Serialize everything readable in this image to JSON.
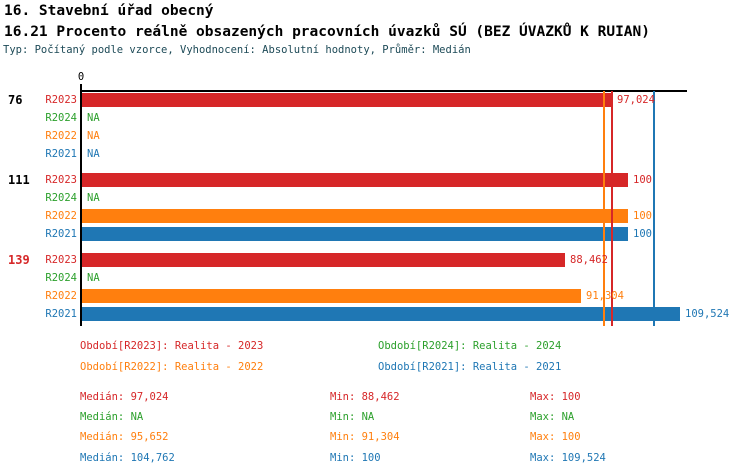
{
  "header": {
    "title": "16. Stavební úřad obecný",
    "subtitle": "16.21 Procento reálně obsazených pracovních úvazků SÚ (BEZ ÚVAZKŮ K RUIAN)",
    "meta": "Typ: Počítaný podle vzorce, Vyhodnocení: Absolutní hodnoty, Průměr: Medián"
  },
  "colors": {
    "R2023": "#d62728",
    "R2024": "#2ca02c",
    "R2022": "#ff7f0e",
    "R2021": "#1f77b4",
    "axis": "#000000",
    "meta_text": "#1d4a57",
    "group_label_default": "#000000",
    "group_label_highlight": "#d62728"
  },
  "chart_data": {
    "type": "bar",
    "orientation": "horizontal",
    "x_axis": {
      "origin_label": "0",
      "min": 0,
      "max": 110.6,
      "grid": false
    },
    "series_order": [
      "R2023",
      "R2024",
      "R2022",
      "R2021"
    ],
    "series_colors": {
      "R2023": "#d62728",
      "R2024": "#2ca02c",
      "R2022": "#ff7f0e",
      "R2021": "#1f77b4"
    },
    "na_text": "NA",
    "groups": [
      {
        "label": "76",
        "label_color": "#000000",
        "bars": [
          {
            "series": "R2023",
            "value": 97.024,
            "display": "97,024"
          },
          {
            "series": "R2024",
            "value": null,
            "display": "NA"
          },
          {
            "series": "R2022",
            "value": null,
            "display": "NA"
          },
          {
            "series": "R2021",
            "value": null,
            "display": "NA"
          }
        ]
      },
      {
        "label": "111",
        "label_color": "#000000",
        "bars": [
          {
            "series": "R2023",
            "value": 100,
            "display": "100"
          },
          {
            "series": "R2024",
            "value": null,
            "display": "NA"
          },
          {
            "series": "R2022",
            "value": 100,
            "display": "100"
          },
          {
            "series": "R2021",
            "value": 100,
            "display": "100"
          }
        ]
      },
      {
        "label": "139",
        "label_color": "#d62728",
        "bars": [
          {
            "series": "R2023",
            "value": 88.462,
            "display": "88,462"
          },
          {
            "series": "R2024",
            "value": null,
            "display": "NA"
          },
          {
            "series": "R2022",
            "value": 91.304,
            "display": "91,304"
          },
          {
            "series": "R2021",
            "value": 109.524,
            "display": "109,524"
          }
        ]
      }
    ],
    "median_lines": [
      {
        "series": "R2023",
        "value": 97.024,
        "color": "#d62728"
      },
      {
        "series": "R2022",
        "value": 95.652,
        "color": "#ff7f0e"
      },
      {
        "series": "R2021",
        "value": 104.762,
        "color": "#1f77b4"
      }
    ]
  },
  "legend": {
    "items": [
      {
        "series": "R2023",
        "label": "Období[R2023]: Realita - 2023",
        "color": "#d62728",
        "row": 0,
        "col": 0
      },
      {
        "series": "R2024",
        "label": "Období[R2024]: Realita - 2024",
        "color": "#2ca02c",
        "row": 0,
        "col": 1
      },
      {
        "series": "R2022",
        "label": "Období[R2022]: Realita - 2022",
        "color": "#ff7f0e",
        "row": 1,
        "col": 0
      },
      {
        "series": "R2021",
        "label": "Období[R2021]: Realita - 2021",
        "color": "#1f77b4",
        "row": 1,
        "col": 1
      }
    ]
  },
  "stats": {
    "labels": {
      "median": "Medián:",
      "min": "Min:",
      "max": "Max:"
    },
    "rows": [
      {
        "series": "R2023",
        "color": "#d62728",
        "median": "97,024",
        "min": "88,462",
        "max": "100"
      },
      {
        "series": "R2024",
        "color": "#2ca02c",
        "median": "NA",
        "min": "NA",
        "max": "NA"
      },
      {
        "series": "R2022",
        "color": "#ff7f0e",
        "median": "95,652",
        "min": "91,304",
        "max": "100"
      },
      {
        "series": "R2021",
        "color": "#1f77b4",
        "median": "104,762",
        "min": "100",
        "max": "109,524"
      }
    ]
  }
}
